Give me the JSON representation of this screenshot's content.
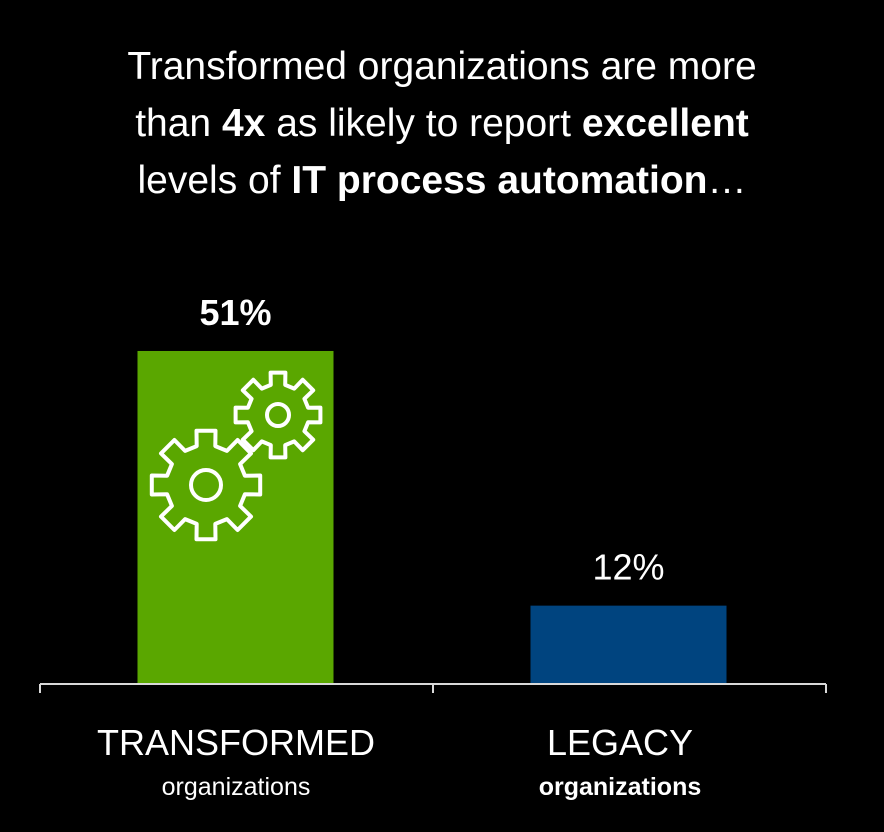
{
  "title": {
    "line1": "Transformed organizations are more",
    "line2_pre": "than ",
    "line2_bold1": "4x",
    "line2_mid": " as likely to report ",
    "line2_bold2": "excellent",
    "line3_pre": "levels of ",
    "line3_bold": "IT process automation",
    "line3_post": "…"
  },
  "colors": {
    "background": "#000000",
    "transformed": "#5aa700",
    "legacy": "#00447f",
    "axis": "#d9d9d9",
    "text": "#ffffff"
  },
  "icon": "gears-icon",
  "chart_data": {
    "type": "bar",
    "categories": [
      "TRANSFORMED",
      "LEGACY"
    ],
    "category_sublabels": [
      "organizations",
      "organizations"
    ],
    "values": [
      51,
      12
    ],
    "data_labels": [
      "51%",
      "12%"
    ],
    "ylim": [
      0,
      60
    ],
    "grid": false,
    "legend": "none"
  }
}
